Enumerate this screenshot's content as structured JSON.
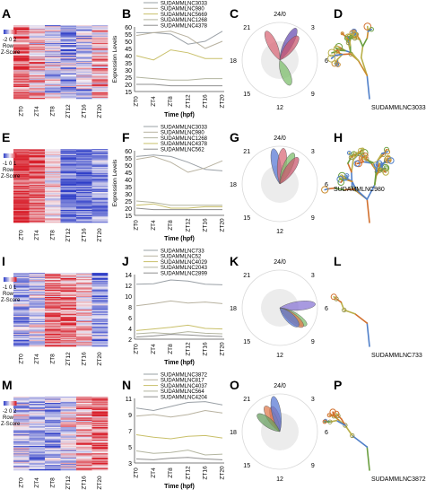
{
  "colors": {
    "heat_red": "#d81f2a",
    "heat_white": "#f4eef4",
    "heat_blue": "#2f3fc8",
    "axis": "#555555",
    "polar_fill": "#ececec",
    "polar_ring": "#d9d9d9",
    "rna_stem": "#8a8a3a"
  },
  "rows": [
    {
      "heat": {
        "letter": "A",
        "scale_nums": "-2 0 2",
        "scale_row": "Row",
        "scale_z": "Z-Score",
        "cols": [
          "ZT0",
          "ZT4",
          "ZT8",
          "ZT12",
          "ZT16",
          "ZT20"
        ],
        "nrows": 70,
        "pattern": [
          0.9,
          0.3,
          -0.2,
          -0.6,
          -0.3,
          0.4
        ],
        "noise": 0.9,
        "seed": 11
      },
      "chart_letter": "B",
      "polar_letter": "C",
      "structure": {
        "letter": "D",
        "label": "SUDAMMLNC3033",
        "seed": 3
      }
    },
    {
      "heat": {
        "letter": "E",
        "scale_nums": "-1 0 1",
        "scale_row": "Row",
        "scale_z": "Z-Score",
        "cols": [
          "ZT0",
          "ZT4",
          "ZT8",
          "ZT12",
          "ZT16",
          "ZT20"
        ],
        "nrows": 70,
        "pattern": [
          1.2,
          0.9,
          0.1,
          -0.9,
          -0.9,
          -0.6
        ],
        "noise": 0.55,
        "seed": 23
      },
      "chart_letter": "F",
      "polar_letter": "G",
      "structure": {
        "letter": "H",
        "label": "SUDAMMLNC980",
        "seed": 7
      }
    },
    {
      "heat": {
        "letter": "I",
        "scale_nums": "-1 0 1",
        "scale_row": "Row",
        "scale_z": "Z-Score",
        "cols": [
          "ZT0",
          "ZT4",
          "ZT8",
          "ZT12",
          "ZT16",
          "ZT20"
        ],
        "nrows": 70,
        "pattern": [
          -0.6,
          -0.2,
          0.8,
          0.7,
          0.2,
          -0.8
        ],
        "noise": 0.8,
        "seed": 37
      },
      "chart_letter": "J",
      "polar_letter": "K",
      "structure": {
        "letter": "L",
        "label": "SUDAMMLNC733",
        "seed": 13
      }
    },
    {
      "heat": {
        "letter": "M",
        "scale_nums": "-2 0 2",
        "scale_row": "Row",
        "scale_z": "Z-Score",
        "cols": [
          "ZT0",
          "ZT4",
          "ZT8",
          "ZT12",
          "ZT16",
          "ZT20"
        ],
        "nrows": 70,
        "pattern": [
          -0.3,
          -0.5,
          -0.5,
          -0.2,
          0.6,
          0.9
        ],
        "noise": 0.8,
        "seed": 51
      },
      "chart_letter": "N",
      "polar_letter": "O",
      "structure": {
        "letter": "P",
        "label": "SUDAMMLNC3872",
        "seed": 19
      }
    }
  ],
  "chart_data": [
    {
      "type": "line",
      "x": [
        "ZT0",
        "ZT4",
        "ZT8",
        "ZT12",
        "ZT16",
        "ZT20"
      ],
      "xlabel": "Time (hpf)",
      "ylabel": "Expression Levels",
      "ylim": [
        15,
        60
      ],
      "yticks": [
        15,
        20,
        25,
        30,
        35,
        40,
        45,
        50,
        55,
        60
      ],
      "series": [
        {
          "name": "SUDAMMLNC3033",
          "color": "#9aa0a6",
          "values": [
            56,
            56,
            55,
            48,
            50,
            57
          ]
        },
        {
          "name": "SUDAMMLNC980",
          "color": "#b8b2a0",
          "values": [
            54,
            56,
            57,
            53,
            45,
            50
          ]
        },
        {
          "name": "SUDAMMLNC5669",
          "color": "#c9c06a",
          "values": [
            40,
            37,
            44,
            42,
            38,
            38
          ]
        },
        {
          "name": "SUDAMMLNC1268",
          "color": "#b3b5a0",
          "values": [
            25,
            24,
            23,
            23,
            24,
            24
          ]
        },
        {
          "name": "SUDAMMLNC4378",
          "color": "#8f8f8f",
          "values": [
            20,
            20,
            19,
            19,
            19,
            19
          ]
        }
      ]
    },
    {
      "type": "line",
      "x": [
        "ZT0",
        "ZT4",
        "ZT8",
        "ZT12",
        "ZT16",
        "ZT20"
      ],
      "xlabel": "Time (hpf)",
      "ylabel": "Expression Levels",
      "ylim": [
        15,
        60
      ],
      "yticks": [
        15,
        20,
        25,
        30,
        35,
        40,
        45,
        50,
        55,
        60
      ],
      "series": [
        {
          "name": "SUDAMMLNC3033",
          "color": "#9aa0a6",
          "values": [
            56,
            57,
            56,
            52,
            47,
            46
          ]
        },
        {
          "name": "SUDAMMLNC980",
          "color": "#b8b2a0",
          "values": [
            54,
            56,
            52,
            45,
            48,
            53
          ]
        },
        {
          "name": "SUDAMMLNC1268",
          "color": "#b3b5a0",
          "values": [
            25,
            24,
            22,
            22,
            22,
            22
          ]
        },
        {
          "name": "SUDAMMLNC4378",
          "color": "#c9c06a",
          "values": [
            22,
            23,
            20,
            20,
            21,
            21
          ]
        },
        {
          "name": "SUDAMMLNC562",
          "color": "#8f8f8f",
          "values": [
            20,
            19,
            19,
            19,
            19,
            19
          ]
        }
      ]
    },
    {
      "type": "line",
      "x": [
        "ZT0",
        "ZT4",
        "ZT8",
        "ZT12",
        "ZT16",
        "ZT20"
      ],
      "xlabel": "Time (hpf)",
      "ylabel": "",
      "ylim": [
        2,
        14
      ],
      "yticks": [
        2,
        4,
        6,
        8,
        10,
        12,
        14
      ],
      "series": [
        {
          "name": "SUDAMMLNC733",
          "color": "#9aa0a6",
          "values": [
            12.2,
            12.3,
            13,
            12.8,
            12.2,
            12.1
          ]
        },
        {
          "name": "SUDAMMLNC52",
          "color": "#b8b2a0",
          "values": [
            8.2,
            8.6,
            9.1,
            8.7,
            8.9,
            8.6
          ]
        },
        {
          "name": "SUDAMMLNC4029",
          "color": "#c9c06a",
          "values": [
            3.6,
            3.9,
            4.2,
            4.6,
            4.0,
            3.9
          ]
        },
        {
          "name": "SUDAMMLNC2043",
          "color": "#b3b5a0",
          "values": [
            3.0,
            3.2,
            3.0,
            3.4,
            3.1,
            3.0
          ]
        },
        {
          "name": "SUDAMMLNC2899",
          "color": "#8f8f8f",
          "values": [
            2.4,
            2.6,
            2.9,
            2.8,
            2.6,
            2.5
          ]
        }
      ]
    },
    {
      "type": "line",
      "x": [
        "ZT0",
        "ZT4",
        "ZT8",
        "ZT12",
        "ZT16",
        "ZT20"
      ],
      "xlabel": "Time (hpf)",
      "ylabel": "",
      "ylim": [
        3,
        11
      ],
      "yticks": [
        3,
        5,
        7,
        9,
        11
      ],
      "series": [
        {
          "name": "SUDAMMLNC3872",
          "color": "#9aa0a6",
          "values": [
            9.8,
            9.5,
            10,
            10.5,
            10.6,
            10.2
          ]
        },
        {
          "name": "SUDAMMLNC817",
          "color": "#b8b2a0",
          "values": [
            8.8,
            9.0,
            8.7,
            9.0,
            9.5,
            9.2
          ]
        },
        {
          "name": "SUDAMMLNC4037",
          "color": "#c9c06a",
          "values": [
            6.5,
            6.2,
            6.0,
            6.3,
            6.4,
            6.1
          ]
        },
        {
          "name": "SUDAMMLNC564",
          "color": "#b3b5a0",
          "values": [
            4.5,
            4.2,
            4.3,
            4.6,
            4.0,
            4.1
          ]
        },
        {
          "name": "SUDAMMLNC4204",
          "color": "#8f8f8f",
          "values": [
            3.5,
            3.4,
            3.6,
            3.7,
            3.5,
            3.4
          ]
        }
      ]
    }
  ],
  "polar_data": [
    {
      "labels": [
        "24/0",
        "3",
        "6",
        "9",
        "12",
        "15",
        "18",
        "21"
      ],
      "petals": [
        {
          "hour": 22.3,
          "len": 0.85,
          "color": "#d96b7a"
        },
        {
          "hour": 1.8,
          "len": 0.95,
          "color": "#6a4fb3"
        },
        {
          "hour": 2.5,
          "len": 0.8,
          "color": "#c9586f"
        },
        {
          "hour": 10.5,
          "len": 0.72,
          "color": "#7fbf6e"
        }
      ]
    },
    {
      "labels": [
        "24/0",
        "3",
        "6",
        "9",
        "12",
        "15",
        "18",
        "21"
      ],
      "petals": [
        {
          "hour": 23.3,
          "len": 0.95,
          "color": "#5b7bd6"
        },
        {
          "hour": 0.4,
          "len": 0.95,
          "color": "#d96b7a"
        },
        {
          "hour": 1.6,
          "len": 0.9,
          "color": "#7fbf6e"
        },
        {
          "hour": 2.3,
          "len": 0.85,
          "color": "#c9586f"
        }
      ]
    },
    {
      "labels": [
        "24/0",
        "3",
        "6",
        "9",
        "12",
        "15",
        "18",
        "21"
      ],
      "petals": [
        {
          "hour": 5.6,
          "len": 0.95,
          "color": "#8b78d6"
        },
        {
          "hour": 8.2,
          "len": 0.85,
          "color": "#7fbf6e"
        },
        {
          "hour": 8.6,
          "len": 0.8,
          "color": "#e07c4f"
        },
        {
          "hour": 9.0,
          "len": 0.7,
          "color": "#5b7bd6"
        }
      ]
    },
    {
      "labels": [
        "24/0",
        "3",
        "6",
        "9",
        "12",
        "15",
        "18",
        "21"
      ],
      "petals": [
        {
          "hour": 22.8,
          "len": 0.7,
          "color": "#d96b7a"
        },
        {
          "hour": 22.0,
          "len": 0.78,
          "color": "#e07c4f"
        },
        {
          "hour": 23.3,
          "len": 0.95,
          "color": "#5b7bd6"
        },
        {
          "hour": 20.5,
          "len": 0.75,
          "color": "#6aa061"
        }
      ]
    }
  ]
}
